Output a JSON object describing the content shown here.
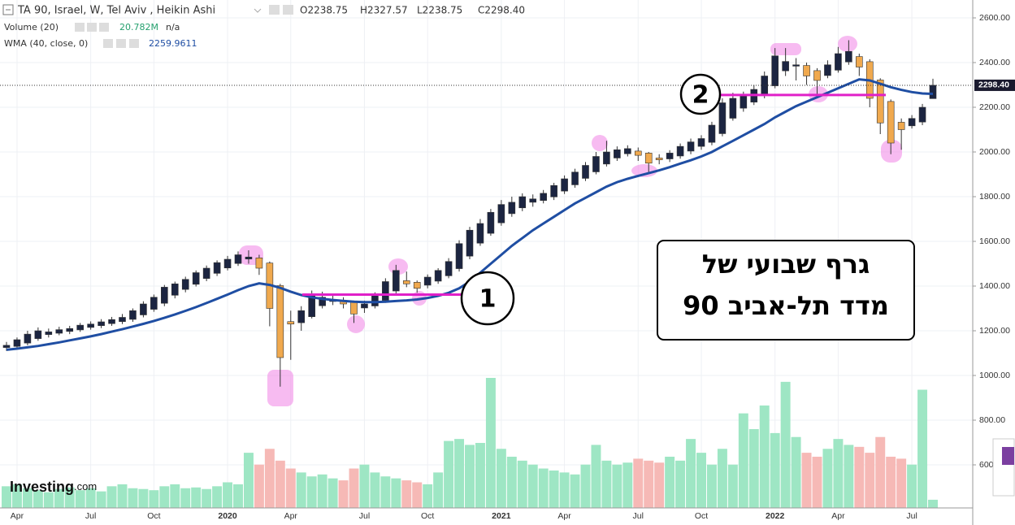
{
  "header": {
    "symbol": "TA 90, Israel, W, Tel Aviv , Heikin Ashi",
    "ohlc": [
      "O2238.75",
      "H2327.57",
      "L2238.75",
      "C2298.40"
    ],
    "volume": {
      "name": "Volume (20)",
      "value": "20.782M",
      "extra": "n/a"
    },
    "wma": {
      "name": "WMA (40, close, 0)",
      "value": "2259.9611"
    }
  },
  "logo": {
    "main": "Investing",
    "suffix": ".com"
  },
  "chart_data": {
    "type": "candlestick",
    "categories": [
      null,
      "Apr",
      null,
      null,
      null,
      null,
      null,
      null,
      "Jul",
      null,
      null,
      null,
      null,
      null,
      "Oct",
      null,
      null,
      null,
      null,
      null,
      null,
      "2020",
      null,
      null,
      null,
      null,
      null,
      "Apr",
      null,
      null,
      null,
      null,
      null,
      null,
      "Jul",
      null,
      null,
      null,
      null,
      null,
      "Oct",
      null,
      null,
      null,
      null,
      null,
      null,
      "2021",
      null,
      null,
      null,
      null,
      null,
      "Apr",
      null,
      null,
      null,
      null,
      null,
      null,
      "Jul",
      null,
      null,
      null,
      null,
      null,
      "Oct",
      null,
      null,
      null,
      null,
      null,
      null,
      "2022",
      null,
      null,
      null,
      null,
      null,
      "Apr",
      null,
      null,
      null,
      null,
      null,
      null,
      "Jul",
      null,
      null
    ],
    "open": [
      1125,
      1130,
      1145,
      1165,
      1183,
      1189,
      1197,
      1204,
      1215,
      1223,
      1232,
      1241,
      1251,
      1271,
      1296,
      1323,
      1359,
      1385,
      1408,
      1434,
      1457,
      1481,
      1501,
      1521,
      1526,
      1503,
      1402,
      1241,
      1236,
      1263,
      1312,
      1331,
      1336,
      1328,
      1302,
      1311,
      1336,
      1378,
      1424,
      1417,
      1404,
      1422,
      1446,
      1478,
      1534,
      1592,
      1636,
      1683,
      1724,
      1750,
      1775,
      1783,
      1799,
      1825,
      1853,
      1882,
      1911,
      1946,
      1973,
      1992,
      2004,
      1995,
      1973,
      1969,
      1982,
      2004,
      2025,
      2043,
      2082,
      2151,
      2196,
      2223,
      2252,
      2296,
      2363,
      2384,
      2387,
      2364,
      2342,
      2366,
      2403,
      2427,
      2404,
      2322,
      2226,
      2133,
      2117,
      2134,
      2238.75
    ],
    "high": [
      1150,
      1170,
      1200,
      1215,
      1210,
      1218,
      1222,
      1235,
      1242,
      1252,
      1262,
      1275,
      1300,
      1332,
      1362,
      1405,
      1420,
      1442,
      1470,
      1492,
      1515,
      1535,
      1555,
      1560,
      1540,
      1510,
      1410,
      1290,
      1310,
      1380,
      1375,
      1360,
      1350,
      1335,
      1335,
      1372,
      1435,
      1495,
      1465,
      1425,
      1452,
      1480,
      1525,
      1605,
      1665,
      1700,
      1745,
      1785,
      1800,
      1815,
      1810,
      1830,
      1862,
      1895,
      1925,
      1955,
      2000,
      2050,
      2025,
      2030,
      2020,
      2000,
      1990,
      2008,
      2038,
      2060,
      2075,
      2135,
      2240,
      2265,
      2270,
      2300,
      2360,
      2465,
      2465,
      2420,
      2400,
      2375,
      2410,
      2470,
      2500,
      2440,
      2415,
      2330,
      2235,
      2150,
      2165,
      2215,
      2327.57
    ],
    "low": [
      1110,
      1120,
      1135,
      1155,
      1170,
      1180,
      1185,
      1195,
      1205,
      1212,
      1222,
      1230,
      1240,
      1260,
      1285,
      1310,
      1345,
      1372,
      1398,
      1422,
      1445,
      1470,
      1490,
      1500,
      1450,
      1220,
      950,
      1070,
      1200,
      1255,
      1300,
      1315,
      1300,
      1235,
      1280,
      1300,
      1325,
      1365,
      1395,
      1370,
      1390,
      1410,
      1435,
      1465,
      1520,
      1580,
      1625,
      1670,
      1710,
      1735,
      1755,
      1770,
      1785,
      1812,
      1840,
      1870,
      1900,
      1935,
      1960,
      1980,
      1960,
      1910,
      1945,
      1955,
      1970,
      1990,
      2010,
      2030,
      2070,
      2140,
      2180,
      2210,
      2240,
      2285,
      2340,
      2320,
      2300,
      2260,
      2330,
      2355,
      2390,
      2340,
      2200,
      2080,
      1990,
      2010,
      2105,
      2120,
      2238.75
    ],
    "close": [
      1135,
      1160,
      1185,
      1200,
      1195,
      1205,
      1210,
      1225,
      1230,
      1240,
      1250,
      1260,
      1290,
      1320,
      1350,
      1395,
      1410,
      1430,
      1460,
      1480,
      1505,
      1520,
      1540,
      1530,
      1480,
      1300,
      1080,
      1230,
      1290,
      1360,
      1350,
      1340,
      1320,
      1275,
      1320,
      1360,
      1420,
      1470,
      1410,
      1390,
      1440,
      1470,
      1510,
      1590,
      1650,
      1680,
      1730,
      1765,
      1775,
      1800,
      1790,
      1815,
      1850,
      1880,
      1910,
      1940,
      1980,
      2000,
      2010,
      2015,
      1985,
      1950,
      1965,
      1995,
      2025,
      2045,
      2060,
      2120,
      2220,
      2240,
      2250,
      2280,
      2340,
      2430,
      2405,
      2390,
      2340,
      2320,
      2390,
      2440,
      2450,
      2380,
      2240,
      2130,
      2040,
      2100,
      2150,
      2200,
      2298.4
    ],
    "up_color": "#1c2541",
    "down_color": "#f0a94e",
    "wma": {
      "color": "#1f4ea3",
      "values": [
        1115,
        1120,
        1126,
        1132,
        1140,
        1148,
        1157,
        1166,
        1175,
        1185,
        1196,
        1207,
        1219,
        1231,
        1244,
        1258,
        1273,
        1289,
        1306,
        1324,
        1343,
        1362,
        1382,
        1400,
        1412,
        1405,
        1392,
        1375,
        1360,
        1350,
        1343,
        1338,
        1334,
        1330,
        1328,
        1328,
        1330,
        1333,
        1336,
        1340,
        1347,
        1356,
        1370,
        1390,
        1420,
        1460,
        1500,
        1540,
        1580,
        1615,
        1650,
        1680,
        1710,
        1740,
        1770,
        1795,
        1820,
        1845,
        1865,
        1880,
        1893,
        1905,
        1918,
        1932,
        1948,
        1963,
        1980,
        2000,
        2025,
        2050,
        2075,
        2100,
        2125,
        2155,
        2180,
        2205,
        2225,
        2245,
        2265,
        2285,
        2305,
        2325,
        2320,
        2305,
        2290,
        2278,
        2268,
        2262,
        2259.9611
      ]
    },
    "volume": {
      "up_color": "#9ee6c4",
      "down_color": "#f6b9b6",
      "values": [
        55,
        60,
        50,
        45,
        40,
        48,
        52,
        45,
        50,
        42,
        55,
        60,
        50,
        48,
        45,
        55,
        60,
        50,
        52,
        48,
        55,
        65,
        60,
        140,
        110,
        150,
        120,
        100,
        90,
        80,
        85,
        75,
        70,
        100,
        110,
        90,
        80,
        75,
        70,
        65,
        60,
        90,
        170,
        175,
        160,
        165,
        330,
        150,
        130,
        120,
        110,
        100,
        95,
        90,
        85,
        110,
        160,
        120,
        110,
        115,
        125,
        120,
        115,
        130,
        120,
        175,
        140,
        110,
        150,
        110,
        240,
        200,
        260,
        190,
        320,
        180,
        140,
        130,
        150,
        175,
        160,
        155,
        140,
        180,
        130,
        125,
        110,
        300,
        20.782
      ]
    },
    "ylim": [
      407.3,
      2680
    ],
    "yticks": [
      {
        "value": 600,
        "label": "600.00"
      },
      {
        "value": 800,
        "label": "800.00"
      },
      {
        "value": 1000,
        "label": "1000.00"
      },
      {
        "value": 1200,
        "label": "1200.00"
      },
      {
        "value": 1400,
        "label": "1400.00"
      },
      {
        "value": 1600,
        "label": "1600.00"
      },
      {
        "value": 1800,
        "label": "1800.00"
      },
      {
        "value": 2000,
        "label": "2000.00"
      },
      {
        "value": 2200,
        "label": "2200.00"
      },
      {
        "value": 2400,
        "label": "2400.00"
      },
      {
        "value": 2600,
        "label": "2600.00"
      }
    ],
    "grid": true,
    "last_price": {
      "value": 2298.4,
      "label": "2298.40"
    },
    "levels": [
      {
        "label": "1",
        "value": 1362,
        "color": "#e020c8"
      },
      {
        "label": "2",
        "value": 2255,
        "color": "#e020c8"
      }
    ],
    "note": [
      "גרף שבועי של",
      "מדד תל-אביב 90"
    ]
  }
}
